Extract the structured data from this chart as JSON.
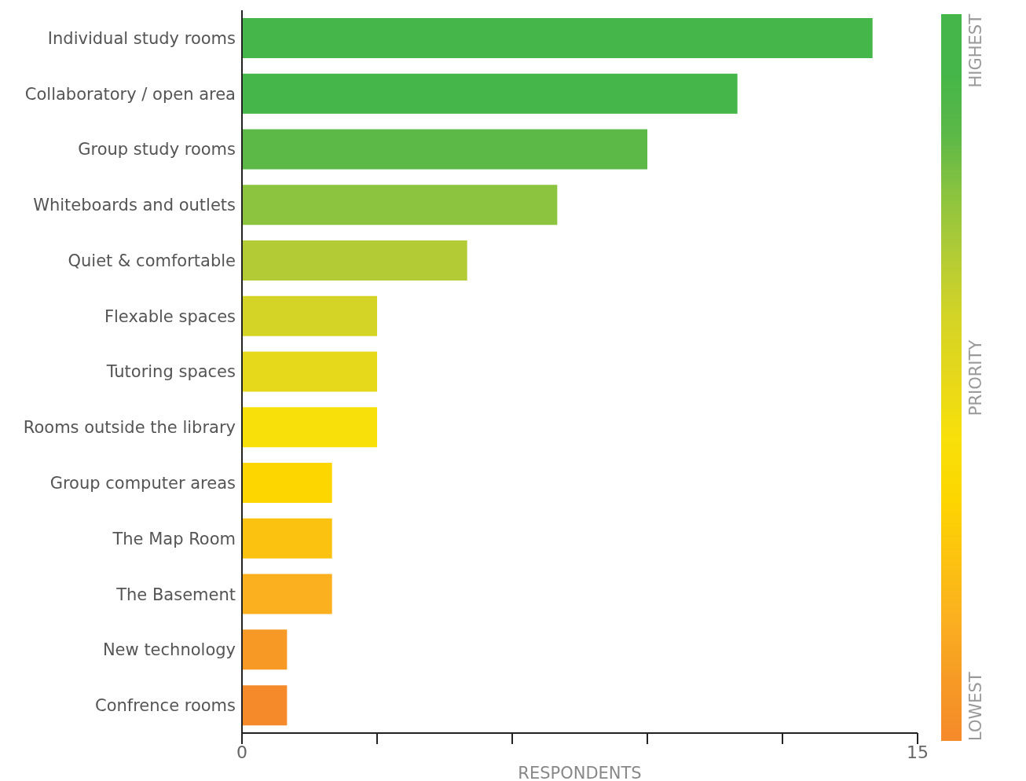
{
  "chart_data": {
    "type": "bar",
    "orientation": "horizontal",
    "xlabel": "RESPONDENTS",
    "categories": [
      "Individual study rooms",
      "Collaboratory / open area",
      "Group study rooms",
      "Whiteboards and outlets",
      "Quiet & comfortable",
      "Flexable spaces",
      "Tutoring spaces",
      "Rooms outside the library",
      "Group computer areas",
      "The Map Room",
      "The Basement",
      "New technology",
      "Confrence rooms"
    ],
    "values": [
      14,
      11,
      9,
      7,
      5,
      3,
      3,
      3,
      2,
      2,
      2,
      1,
      1
    ],
    "colors": [
      "#45b649",
      "#45b649",
      "#5cb847",
      "#8cc43f",
      "#b3cc35",
      "#d4d426",
      "#e6d81a",
      "#f8e00a",
      "#fdd600",
      "#fcc210",
      "#fbb020",
      "#f69a25",
      "#f58a2a"
    ],
    "xlim": [
      0,
      15
    ],
    "xticks": [
      0,
      {
        "value": 3,
        "label": null
      },
      {
        "value": 6,
        "label": null
      },
      {
        "value": 9,
        "label": null
      },
      {
        "value": 12,
        "label": null
      },
      15
    ],
    "grid": false,
    "annotations": [
      "HIGHEST",
      "PRIORITY",
      "LOWEST"
    ]
  }
}
